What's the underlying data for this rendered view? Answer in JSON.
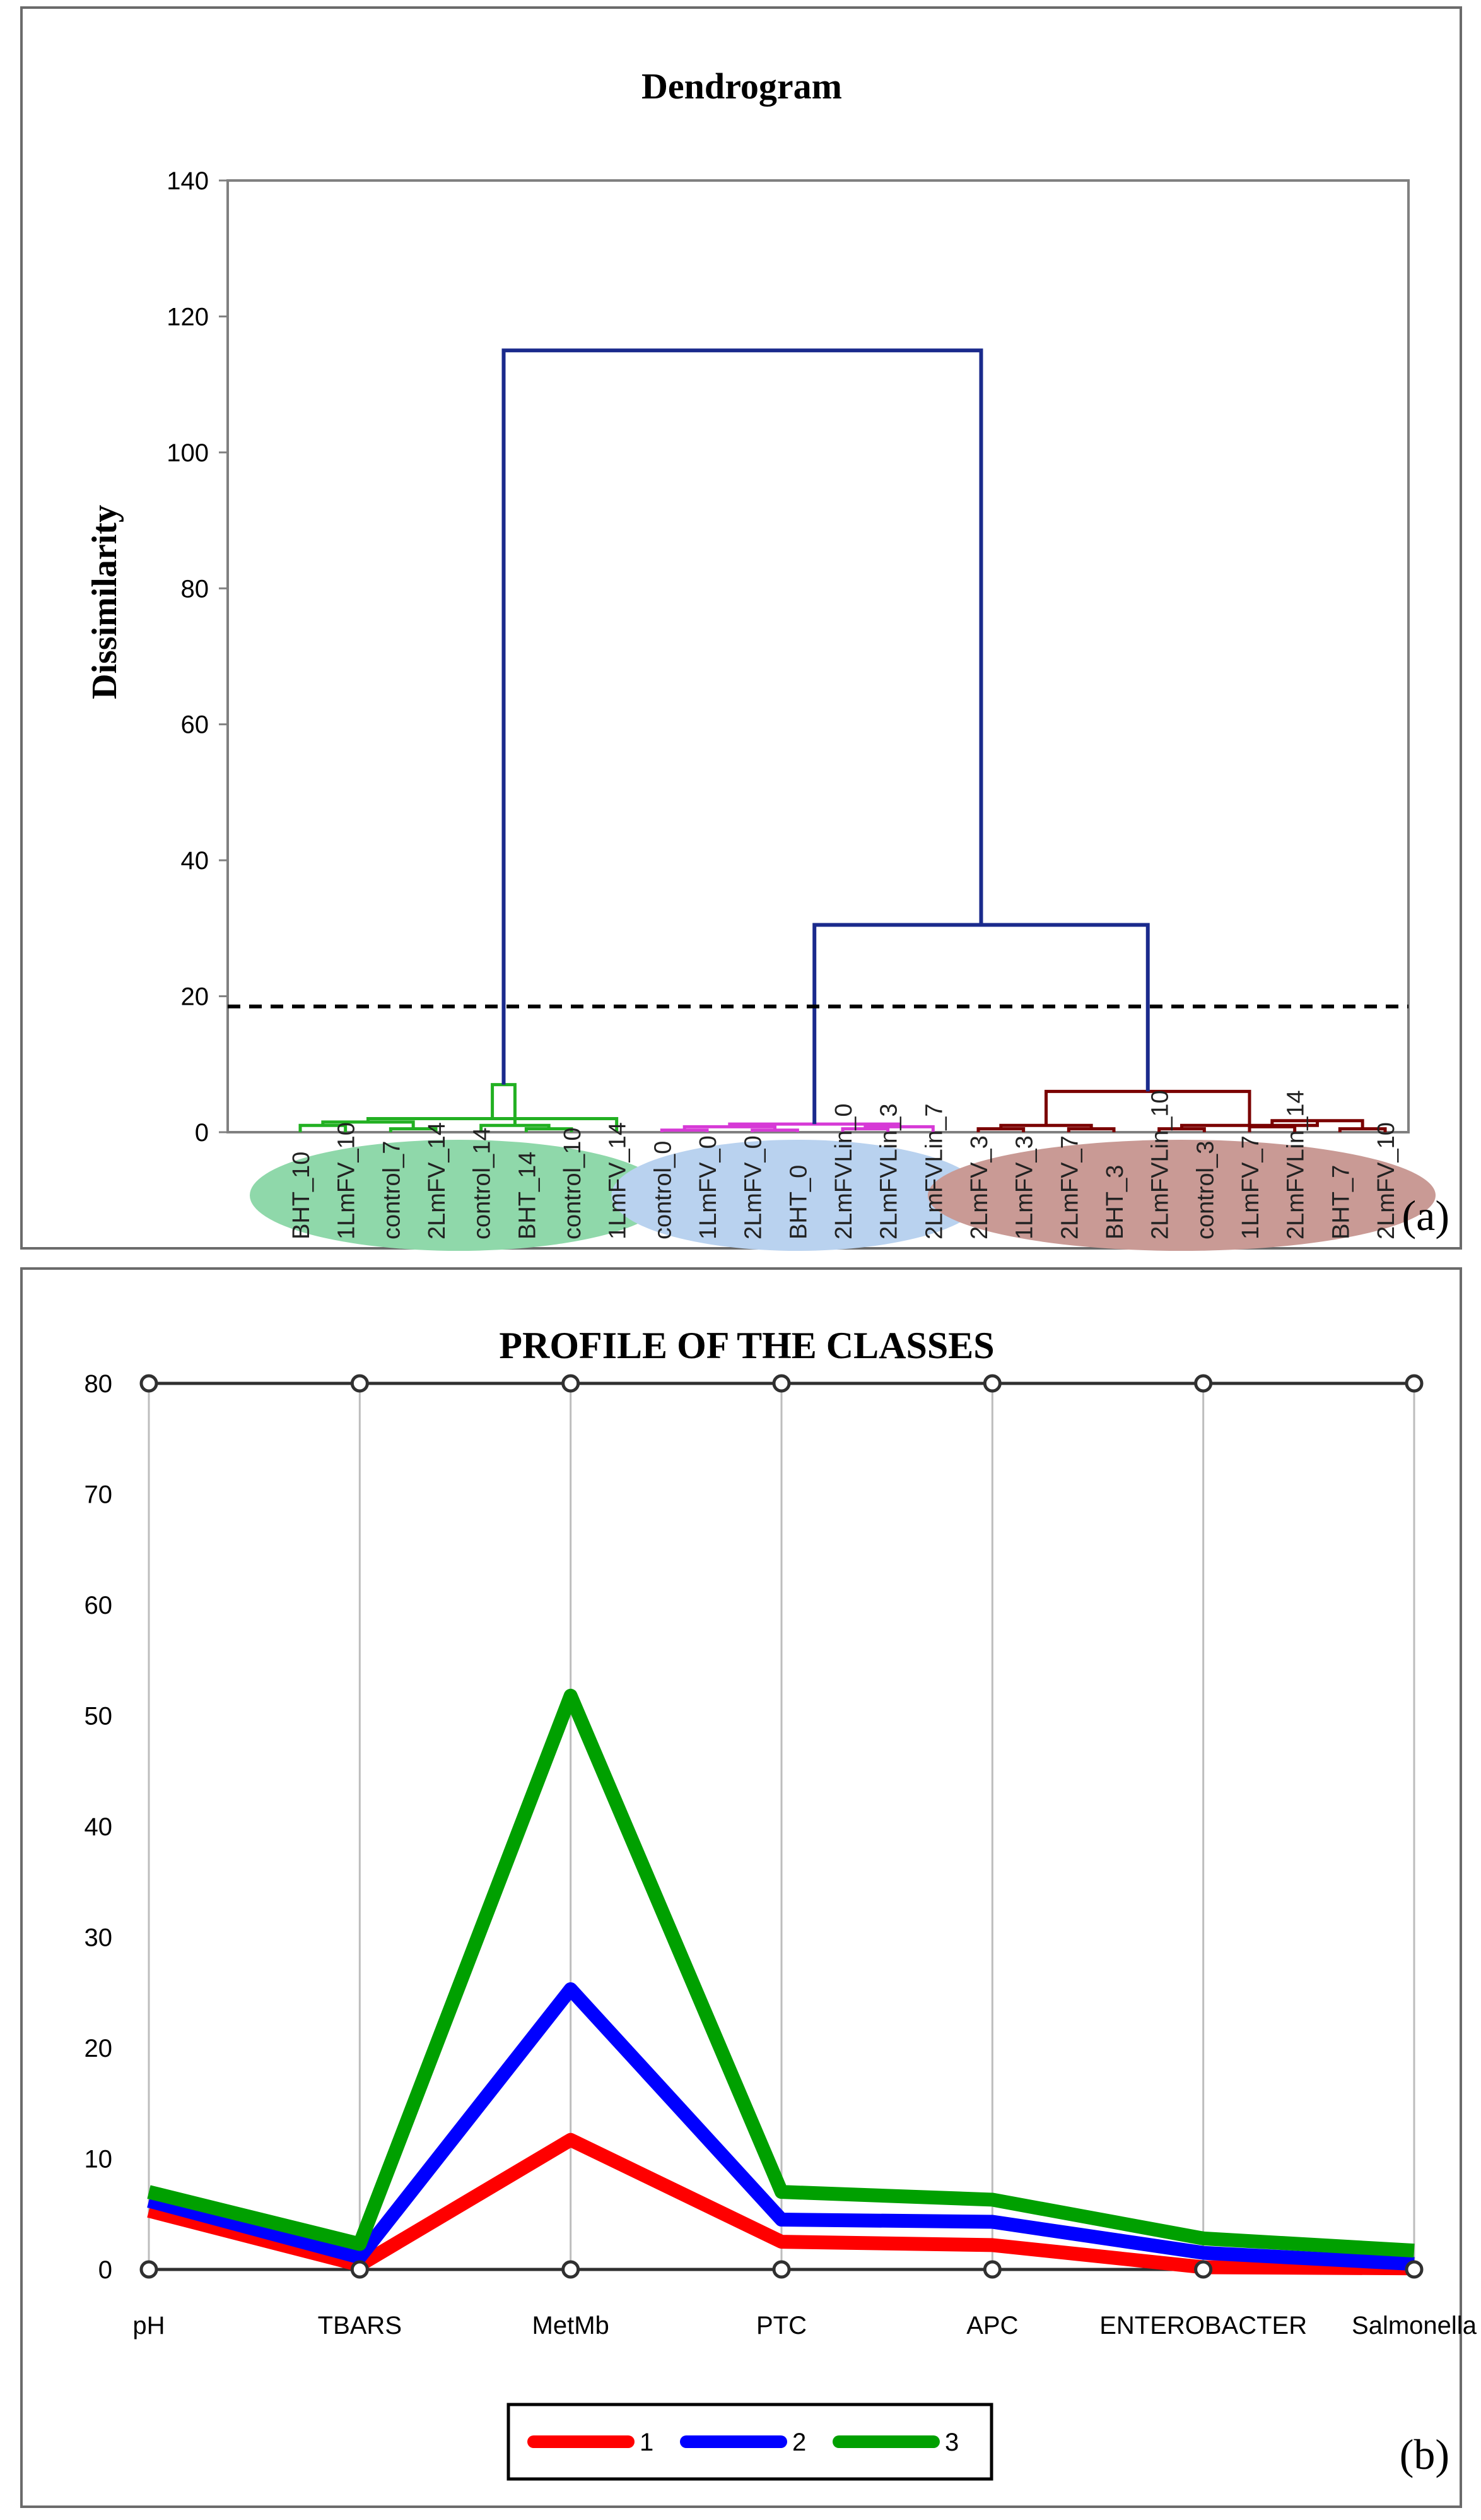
{
  "chart_data": [
    {
      "type": "dendrogram",
      "title": "Dendrogram",
      "ylabel": "Dissimilarity",
      "ylim": [
        0,
        140
      ],
      "yticks": [
        0,
        20,
        40,
        60,
        80,
        100,
        120,
        140
      ],
      "panel_label": "(a)",
      "truncation_line": 18.5,
      "leaves": [
        {
          "label": "BHT_10",
          "group": 1
        },
        {
          "label": "1LmFV_10",
          "group": 1
        },
        {
          "label": "control_7",
          "group": 1
        },
        {
          "label": "2LmFV_14",
          "group": 1
        },
        {
          "label": "control_14",
          "group": 1
        },
        {
          "label": "BHT_14",
          "group": 1
        },
        {
          "label": "control_10",
          "group": 1
        },
        {
          "label": "1LmFV_14",
          "group": 1
        },
        {
          "label": "control_0",
          "group": 2
        },
        {
          "label": "1LmFV_0",
          "group": 2
        },
        {
          "label": "2LmFV_0",
          "group": 2
        },
        {
          "label": "BHT_0",
          "group": 2
        },
        {
          "label": "2LmFVLin_0",
          "group": 2
        },
        {
          "label": "2LmFVLin_3",
          "group": 2
        },
        {
          "label": "2LmFVLin_7",
          "group": 2
        },
        {
          "label": "2LmFV_3",
          "group": 3
        },
        {
          "label": "1LmFV_3",
          "group": 3
        },
        {
          "label": "2LmFV_7",
          "group": 3
        },
        {
          "label": "BHT_3",
          "group": 3
        },
        {
          "label": "2LmFVLin_10",
          "group": 3
        },
        {
          "label": "control_3",
          "group": 3
        },
        {
          "label": "1LmFV_7",
          "group": 3
        },
        {
          "label": "2LmFVLin_14",
          "group": 3
        },
        {
          "label": "BHT_7",
          "group": 3
        },
        {
          "label": "2LmFV_10",
          "group": 3
        }
      ],
      "merges": [
        {
          "group": 1,
          "children": [
            2,
            3
          ],
          "height": 0.5
        },
        {
          "group": 1,
          "children": [
            5,
            6
          ],
          "height": 0.5
        },
        {
          "group": 1,
          "children": [
            0,
            1
          ],
          "height": 1.0
        },
        {
          "group": 1,
          "children": [
            26,
            4
          ],
          "height": 1.0
        },
        {
          "group": 1,
          "children": [
            27,
            25
          ],
          "height": 1.5
        },
        {
          "group": 1,
          "children": [
            29,
            7
          ],
          "height": 2.0
        },
        {
          "group": 1,
          "children": [
            30,
            28
          ],
          "height": 7.0
        },
        {
          "group": 2,
          "children": [
            8,
            9
          ],
          "height": 0.3
        },
        {
          "group": 2,
          "children": [
            10,
            11
          ],
          "height": 0.3
        },
        {
          "group": 2,
          "children": [
            12,
            13
          ],
          "height": 0.5
        },
        {
          "group": 2,
          "children": [
            34,
            14
          ],
          "height": 0.8
        },
        {
          "group": 2,
          "children": [
            32,
            33
          ],
          "height": 0.8
        },
        {
          "group": 2,
          "children": [
            36,
            35
          ],
          "height": 1.2
        },
        {
          "group": 3,
          "children": [
            15,
            16
          ],
          "height": 0.5
        },
        {
          "group": 3,
          "children": [
            17,
            18
          ],
          "height": 0.5
        },
        {
          "group": 3,
          "children": [
            19,
            20
          ],
          "height": 0.5
        },
        {
          "group": 3,
          "children": [
            21,
            22
          ],
          "height": 0.8
        },
        {
          "group": 3,
          "children": [
            23,
            24
          ],
          "height": 0.5
        },
        {
          "group": 3,
          "children": [
            38,
            39
          ],
          "height": 1.0
        },
        {
          "group": 3,
          "children": [
            41,
            42
          ],
          "height": 1.7
        },
        {
          "group": 3,
          "children": [
            40,
            44
          ],
          "height": 1.0
        },
        {
          "group": 3,
          "children": [
            45,
            43
          ],
          "height": 6.0
        },
        {
          "group": 0,
          "children": [
            37,
            46
          ],
          "height": 30.5
        },
        {
          "group": 0,
          "children": [
            31,
            47
          ],
          "height": 115.0
        }
      ],
      "colors": {
        "1": "#22b022",
        "2": "#d63ad6",
        "3": "#7a0000",
        "0": "#1a2a8c"
      },
      "ellipse_colors": {
        "1": "#8fd8aa",
        "2": "#b9d2ef",
        "3": "#c99a95"
      }
    },
    {
      "type": "line",
      "title": "PROFILE OF THE CLASSES",
      "panel_label": "(b)",
      "categories": [
        "pH",
        "TBARS",
        "MetMb",
        "PTC",
        "APC",
        "ENTEROBACTER",
        "Salmonella"
      ],
      "ylim": [
        0,
        80
      ],
      "yticks": [
        0,
        10,
        20,
        30,
        40,
        50,
        60,
        70,
        80
      ],
      "grid": true,
      "legend_position": "bottom-center",
      "series": [
        {
          "name": "1",
          "color": "#ff0000",
          "values": [
            5.3,
            0.4,
            11.7,
            2.5,
            2.2,
            0.2,
            0.1
          ]
        },
        {
          "name": "2",
          "color": "#0000ff",
          "values": [
            6.2,
            1.1,
            25.3,
            4.5,
            4.3,
            1.5,
            0.5
          ]
        },
        {
          "name": "3",
          "color": "#00a000",
          "values": [
            7.0,
            2.3,
            51.8,
            7.0,
            6.3,
            2.8,
            1.7
          ]
        }
      ]
    }
  ]
}
